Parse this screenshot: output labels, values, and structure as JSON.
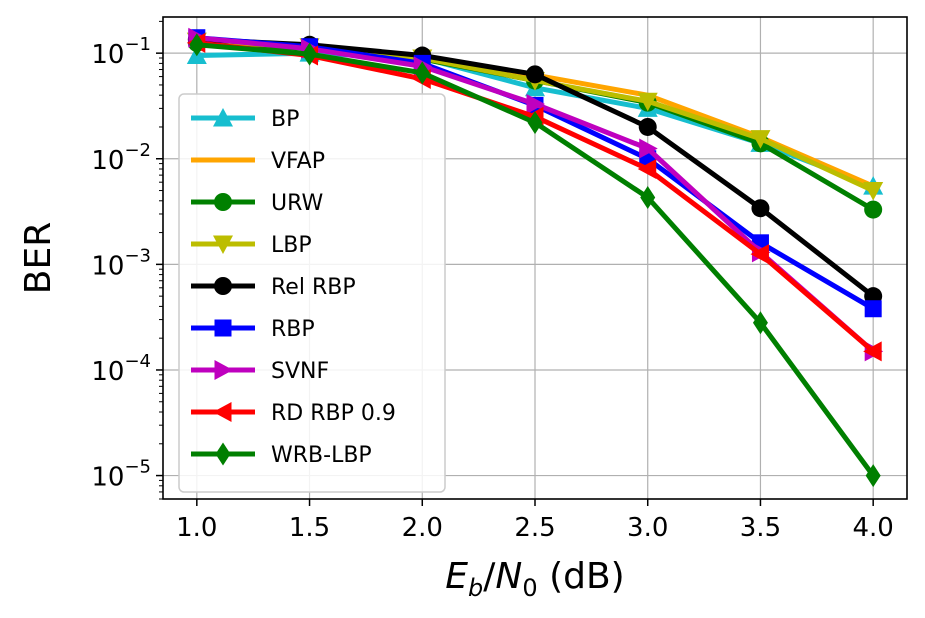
{
  "chart_data": {
    "type": "line",
    "title": "",
    "xlabel": "E_b/N_0 (dB)",
    "xlabel_parts": {
      "E": "E",
      "b": "b",
      "N": "N",
      "zero": "0",
      "unit": " (dB)"
    },
    "ylabel": "BER",
    "x": [
      1.0,
      1.5,
      2.0,
      2.5,
      3.0,
      3.5,
      4.0
    ],
    "x_tick_labels": [
      "1.0",
      "1.5",
      "2.0",
      "2.5",
      "3.0",
      "3.5",
      "4.0"
    ],
    "xlim": [
      0.85,
      4.15
    ],
    "y_scale": "log",
    "ylim": [
      6e-06,
      0.22
    ],
    "y_ticks": [
      {
        "value": 0.1,
        "base": "10",
        "exp": "−1"
      },
      {
        "value": 0.01,
        "base": "10",
        "exp": "−2"
      },
      {
        "value": 0.001,
        "base": "10",
        "exp": "−3"
      },
      {
        "value": 0.0001,
        "base": "10",
        "exp": "−4"
      },
      {
        "value": 1e-05,
        "base": "10",
        "exp": "−5"
      }
    ],
    "grid": true,
    "legend_position": "lower-left",
    "series": [
      {
        "name": "BP",
        "color": "#17becf",
        "marker": "triangle-up",
        "values": [
          0.095,
          0.1,
          0.09,
          0.047,
          0.03,
          0.014,
          0.0055
        ]
      },
      {
        "name": "VFAP",
        "color": "#ffa500",
        "marker": "none",
        "values": [
          0.125,
          0.115,
          0.09,
          0.062,
          0.04,
          0.016,
          0.0055
        ]
      },
      {
        "name": "URW",
        "color": "#008000",
        "marker": "circle",
        "values": [
          0.125,
          0.11,
          0.088,
          0.055,
          0.034,
          0.014,
          0.0033
        ]
      },
      {
        "name": "LBP",
        "color": "#bcbd00",
        "marker": "triangle-down",
        "values": [
          0.13,
          0.115,
          0.09,
          0.055,
          0.035,
          0.0155,
          0.005
        ]
      },
      {
        "name": "Rel RBP",
        "color": "#000000",
        "marker": "circle",
        "values": [
          0.135,
          0.12,
          0.095,
          0.063,
          0.02,
          0.0034,
          0.0005
        ]
      },
      {
        "name": "RBP",
        "color": "#0000ff",
        "marker": "square",
        "values": [
          0.14,
          0.115,
          0.08,
          0.032,
          0.01,
          0.0016,
          0.00038
        ]
      },
      {
        "name": "SVNF",
        "color": "#bf00bf",
        "marker": "triangle-right",
        "values": [
          0.14,
          0.11,
          0.075,
          0.033,
          0.0125,
          0.0013,
          0.00015
        ]
      },
      {
        "name": "RD RBP 0.9",
        "color": "#ff0000",
        "marker": "triangle-left",
        "values": [
          0.125,
          0.095,
          0.057,
          0.025,
          0.008,
          0.00125,
          0.00015
        ]
      },
      {
        "name": "WRB-LBP",
        "color": "#007f00",
        "marker": "diamond",
        "values": [
          0.12,
          0.098,
          0.065,
          0.022,
          0.0043,
          0.00028,
          1e-05
        ]
      }
    ]
  }
}
